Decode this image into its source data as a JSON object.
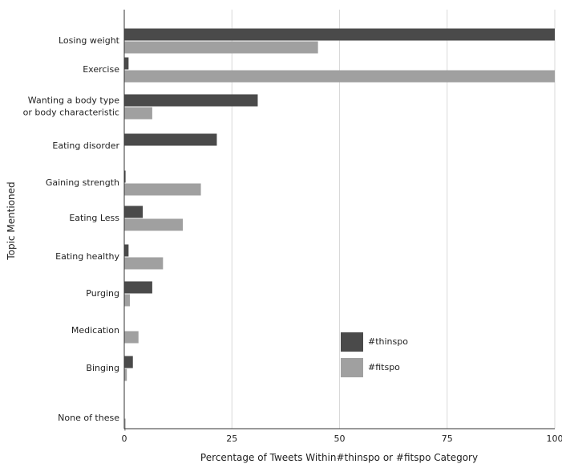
{
  "chart_data": {
    "type": "bar",
    "orientation": "horizontal",
    "title": "",
    "xlabel": "Percentage of Tweets Within#thinspo or #fitspo Category",
    "ylabel": "Topic Mentioned",
    "xlim": [
      0,
      100
    ],
    "xticks": [
      "0",
      "25",
      "50",
      "75",
      "100"
    ],
    "grid": true,
    "legend_position": "right",
    "categories": [
      [
        "Losing weight"
      ],
      [
        "Exercise"
      ],
      [
        "Wanting a body type",
        "or body characteristic"
      ],
      [
        "Eating disorder"
      ],
      [
        "Gaining strength"
      ],
      [
        "Eating Less"
      ],
      [
        "Eating healthy"
      ],
      [
        "Purging"
      ],
      [
        "Medication"
      ],
      [
        "Binging"
      ],
      [
        "None of these"
      ]
    ],
    "series": [
      {
        "name": "#thinspo",
        "color": "#4a4a4a",
        "values": [
          100,
          1,
          31,
          21.5,
          0.3,
          4.3,
          1,
          6.5,
          0,
          2,
          0
        ]
      },
      {
        "name": "#fitspo",
        "color": "#a0a0a0",
        "values": [
          45,
          100,
          6.5,
          0,
          17.8,
          13.6,
          9,
          1.3,
          3.3,
          0.6,
          0.3
        ]
      }
    ]
  }
}
